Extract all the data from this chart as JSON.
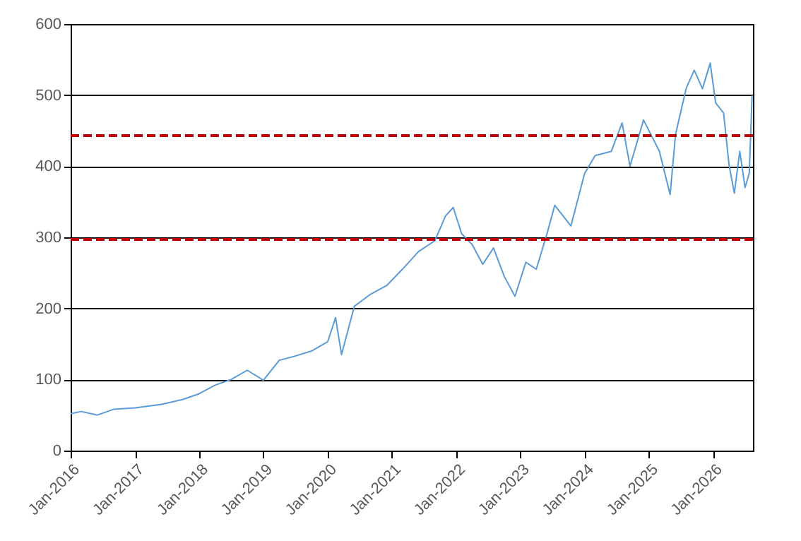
{
  "chart_data": {
    "type": "line",
    "x": [
      "2016-01-01",
      "2016-03-01",
      "2016-06-01",
      "2016-09-01",
      "2017-01-01",
      "2017-06-01",
      "2017-10-01",
      "2018-01-01",
      "2018-04-01",
      "2018-07-01",
      "2018-10-01",
      "2019-01-01",
      "2019-04-01",
      "2019-07-01",
      "2019-10-01",
      "2020-01-01",
      "2020-02-15",
      "2020-03-20",
      "2020-06-01",
      "2020-09-01",
      "2020-12-01",
      "2021-03-01",
      "2021-06-01",
      "2021-09-01",
      "2021-11-01",
      "2021-12-15",
      "2022-02-01",
      "2022-04-01",
      "2022-06-01",
      "2022-08-01",
      "2022-10-01",
      "2022-12-01",
      "2023-02-01",
      "2023-04-01",
      "2023-06-01",
      "2023-07-15",
      "2023-09-01",
      "2023-10-15",
      "2024-01-01",
      "2024-03-01",
      "2024-06-01",
      "2024-08-01",
      "2024-09-15",
      "2024-12-01",
      "2025-03-01",
      "2025-05-01",
      "2025-06-01",
      "2025-08-01",
      "2025-09-15",
      "2025-11-01",
      "2025-12-15",
      "2026-01-15",
      "2026-03-01",
      "2026-04-01",
      "2026-05-01",
      "2026-06-01",
      "2026-07-01",
      "2026-07-25",
      "2026-08-10"
    ],
    "series": [
      {
        "color": "#5b9bd5",
        "values": [
          52,
          55,
          50,
          58,
          60,
          65,
          72,
          80,
          92,
          100,
          113,
          99,
          127,
          133,
          140,
          153,
          187,
          135,
          203,
          220,
          232,
          255,
          280,
          295,
          330,
          342,
          305,
          290,
          262,
          285,
          245,
          217,
          265,
          255,
          305,
          345,
          330,
          316,
          390,
          415,
          421,
          461,
          400,
          465,
          421,
          360,
          445,
          510,
          535,
          509,
          545,
          489,
          475,
          402,
          362,
          421,
          370,
          390,
          500
        ]
      }
    ],
    "xlim": [
      "2016-01-01",
      "2026-08-15"
    ],
    "ylim": [
      0,
      600
    ],
    "yticks": [
      0,
      100,
      200,
      300,
      400,
      500,
      600
    ],
    "xticks": [
      {
        "value": "2016-01-01",
        "label": "Jan-2016"
      },
      {
        "value": "2017-01-01",
        "label": "Jan-2017"
      },
      {
        "value": "2018-01-01",
        "label": "Jan-2018"
      },
      {
        "value": "2019-01-01",
        "label": "Jan-2019"
      },
      {
        "value": "2020-01-01",
        "label": "Jan-2020"
      },
      {
        "value": "2021-01-01",
        "label": "Jan-2021"
      },
      {
        "value": "2022-01-01",
        "label": "Jan-2022"
      },
      {
        "value": "2023-01-01",
        "label": "Jan-2023"
      },
      {
        "value": "2024-01-01",
        "label": "Jan-2024"
      },
      {
        "value": "2025-01-01",
        "label": "Jan-2025"
      },
      {
        "value": "2026-01-01",
        "label": "Jan-2026"
      }
    ],
    "ref_lines": [
      {
        "axis": "y",
        "value": 443,
        "color": "#c00000",
        "line_style": "dashed"
      },
      {
        "axis": "y",
        "value": 297,
        "color": "#c00000",
        "line_style": "dashed"
      }
    ],
    "grid": "y"
  }
}
